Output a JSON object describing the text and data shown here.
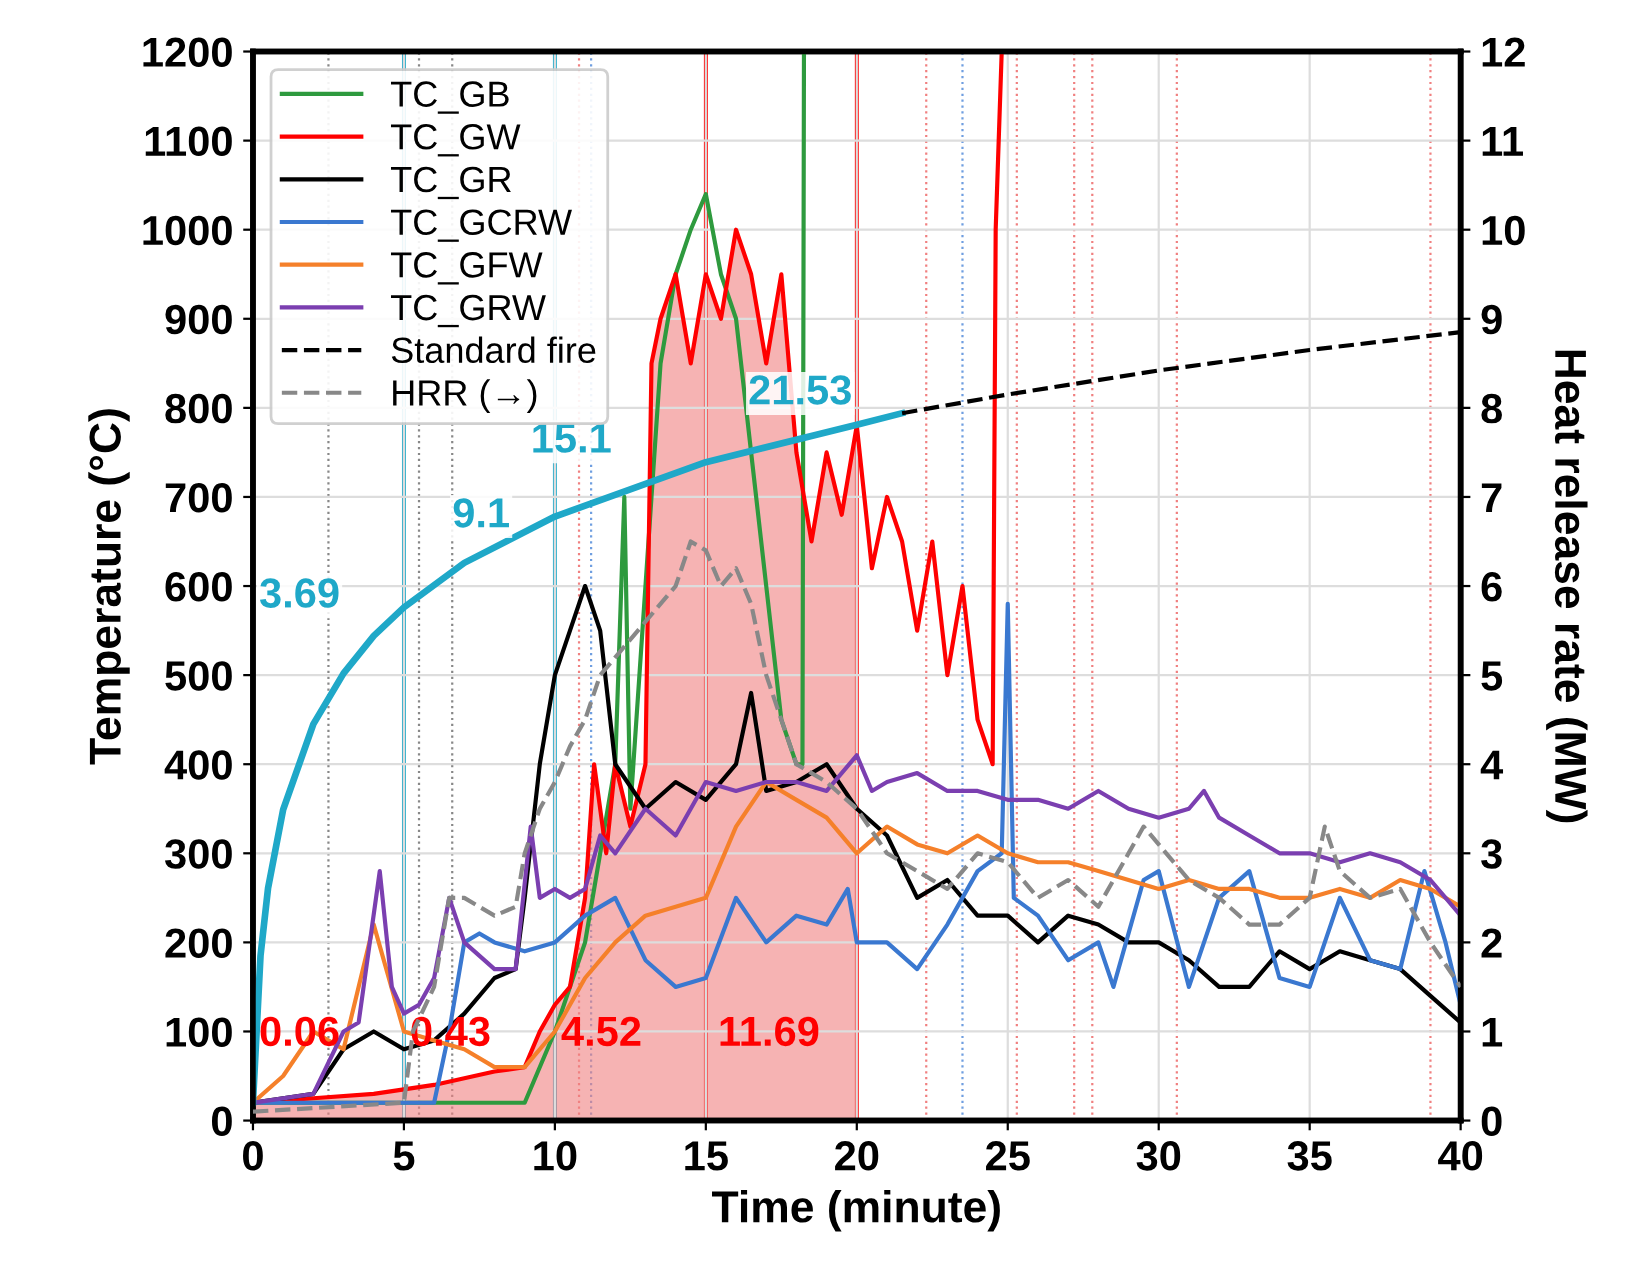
{
  "chart_data": {
    "type": "line",
    "xlabel": "Time (minute)",
    "ylabel": "Temperature (°C)",
    "y2label": "Heat release rate (MW)",
    "xlim": [
      0,
      40
    ],
    "xticks": [
      0,
      5,
      10,
      15,
      20,
      25,
      30,
      35,
      40
    ],
    "ylim": [
      0,
      1200
    ],
    "yticks": [
      0,
      100,
      200,
      300,
      400,
      500,
      600,
      700,
      800,
      900,
      1000,
      1100,
      1200
    ],
    "y2lim": [
      0,
      12
    ],
    "y2ticks": [
      0,
      1,
      2,
      3,
      4,
      5,
      6,
      7,
      8,
      9,
      10,
      11,
      12
    ],
    "grid": true,
    "legend": "top left",
    "series": [
      {
        "type": "area",
        "color": "#f08080",
        "x": [
          0,
          2,
          4,
          6,
          8,
          9,
          9.5,
          10,
          10.5,
          11,
          11.3,
          11.7,
          12,
          12.5,
          13,
          13.2,
          13.5,
          14,
          14.5,
          15,
          15.5,
          16,
          16.5,
          17,
          17.5,
          18,
          18.5,
          19,
          19.5,
          20
        ],
        "values": [
          20,
          25,
          30,
          40,
          55,
          60,
          100,
          130,
          150,
          250,
          400,
          300,
          400,
          330,
          400,
          850,
          900,
          950,
          850,
          950,
          900,
          1000,
          950,
          850,
          950,
          750,
          650,
          750,
          680,
          780
        ]
      },
      {
        "name": "TC_GB",
        "color": "#2e9a3e",
        "x": [
          0,
          5,
          9,
          10,
          11,
          11.5,
          12,
          12.3,
          12.5,
          13,
          13.5,
          14,
          14.5,
          15,
          15.5,
          16,
          16.5,
          17,
          17.5,
          18,
          18.2,
          18.25
        ],
        "values": [
          20,
          20,
          20,
          100,
          200,
          300,
          400,
          700,
          350,
          600,
          850,
          950,
          1000,
          1040,
          950,
          900,
          750,
          600,
          450,
          400,
          400,
          1200
        ]
      },
      {
        "name": "TC_GW",
        "color": "#ff0000",
        "x": [
          0,
          2,
          4,
          6,
          8,
          9,
          9.5,
          10,
          10.5,
          11,
          11.3,
          11.7,
          12,
          12.5,
          13,
          13.2,
          13.5,
          14,
          14.5,
          15,
          15.5,
          16,
          16.5,
          17,
          17.5,
          18,
          18.5,
          19,
          19.5,
          20,
          20.5,
          21,
          21.5,
          22,
          22.5,
          23,
          23.5,
          24,
          24.5,
          24.6,
          24.8
        ],
        "values": [
          20,
          25,
          30,
          40,
          55,
          60,
          100,
          130,
          150,
          250,
          400,
          300,
          400,
          330,
          400,
          850,
          900,
          950,
          850,
          950,
          900,
          1000,
          950,
          850,
          950,
          750,
          650,
          750,
          680,
          780,
          620,
          700,
          650,
          550,
          650,
          500,
          600,
          450,
          400,
          1000,
          1200
        ]
      },
      {
        "name": "TC_GR",
        "color": "#000000",
        "x": [
          0,
          2,
          3,
          4,
          5,
          6,
          7,
          8,
          8.7,
          9,
          9.5,
          10,
          10.5,
          11,
          11.5,
          12,
          13,
          14,
          15,
          16,
          16.5,
          17,
          18,
          19,
          20,
          21,
          22,
          23,
          24,
          25,
          26,
          27,
          28,
          29,
          30,
          31,
          32,
          33,
          34,
          35,
          36,
          37,
          38,
          39,
          40
        ],
        "values": [
          20,
          30,
          80,
          100,
          80,
          90,
          120,
          160,
          170,
          250,
          400,
          500,
          550,
          600,
          550,
          400,
          350,
          380,
          360,
          400,
          480,
          370,
          380,
          400,
          350,
          320,
          250,
          270,
          230,
          230,
          200,
          230,
          220,
          200,
          200,
          180,
          150,
          150,
          190,
          170,
          190,
          180,
          170,
          140,
          110
        ]
      },
      {
        "name": "TC_GCRW",
        "color": "#3a78d0",
        "x": [
          0,
          6,
          6.5,
          7,
          7.5,
          8,
          9,
          10,
          11,
          12,
          13,
          14,
          15,
          16,
          17,
          18,
          19,
          19.7,
          20,
          21,
          22,
          23,
          24,
          24.8,
          25,
          25.2,
          26,
          27,
          28,
          28.5,
          29.5,
          30,
          31,
          32,
          33,
          34,
          35,
          36,
          37,
          38,
          38.8,
          39.5,
          40
        ],
        "values": [
          20,
          20,
          100,
          200,
          210,
          200,
          190,
          200,
          230,
          250,
          180,
          150,
          160,
          250,
          200,
          230,
          220,
          260,
          200,
          200,
          170,
          220,
          280,
          300,
          580,
          250,
          230,
          180,
          200,
          150,
          270,
          280,
          150,
          250,
          280,
          160,
          150,
          250,
          180,
          170,
          280,
          200,
          130
        ]
      },
      {
        "name": "TC_GFW",
        "color": "#f5802a",
        "x": [
          0,
          1,
          2,
          3,
          4,
          5,
          6,
          7,
          8,
          9,
          10,
          11,
          12,
          13,
          14,
          15,
          16,
          17,
          18,
          19,
          20,
          21,
          22,
          23,
          24,
          25,
          26,
          27,
          28,
          29,
          30,
          31,
          32,
          33,
          34,
          35,
          36,
          37,
          38,
          39,
          40
        ],
        "values": [
          20,
          50,
          100,
          80,
          220,
          100,
          90,
          80,
          60,
          60,
          100,
          160,
          200,
          230,
          240,
          250,
          330,
          380,
          360,
          340,
          300,
          330,
          310,
          300,
          320,
          300,
          290,
          290,
          280,
          270,
          260,
          270,
          260,
          260,
          250,
          250,
          260,
          250,
          270,
          260,
          240
        ]
      },
      {
        "name": "TC_GRW",
        "color": "#7b3fb0",
        "x": [
          0,
          2,
          3,
          3.5,
          4.2,
          4.6,
          5,
          5.5,
          6,
          6.5,
          7,
          8,
          8.7,
          9.2,
          9.5,
          10,
          10.5,
          11,
          11.5,
          12,
          13,
          14,
          15,
          16,
          17,
          18,
          19,
          20,
          20.5,
          21,
          22,
          23,
          24,
          25,
          26,
          27,
          28,
          29,
          30,
          31,
          31.5,
          32,
          33,
          34,
          35,
          36,
          37,
          38,
          39,
          40
        ],
        "values": [
          20,
          30,
          100,
          110,
          280,
          150,
          120,
          130,
          160,
          250,
          200,
          170,
          170,
          330,
          250,
          260,
          250,
          260,
          320,
          300,
          350,
          320,
          380,
          370,
          380,
          380,
          370,
          410,
          370,
          380,
          390,
          370,
          370,
          360,
          360,
          350,
          370,
          350,
          340,
          350,
          370,
          340,
          320,
          300,
          300,
          290,
          300,
          290,
          270,
          230
        ]
      },
      {
        "color": "#1fa8c8",
        "x": [
          0,
          0.25,
          0.5,
          1,
          2,
          3,
          4,
          5,
          7,
          10,
          15,
          20,
          21.5
        ],
        "values": [
          20,
          185,
          261,
          349,
          445,
          502,
          544,
          576,
          626,
          678,
          739,
          781,
          794
        ]
      },
      {
        "name": "Standard fire",
        "color": "#000000",
        "line_style": "dashed",
        "x": [
          21.5,
          25,
          30,
          35,
          40
        ],
        "values": [
          794,
          815,
          842,
          865,
          885
        ]
      },
      {
        "name": "HRR (→)",
        "color": "#888888",
        "line_style": "dashed",
        "axis": "y2",
        "x": [
          0,
          5,
          5.3,
          6,
          6.5,
          7,
          8,
          8.7,
          9,
          9.5,
          10,
          10.5,
          11,
          11.5,
          12,
          13,
          14,
          14.5,
          15,
          15.5,
          16,
          16.5,
          17,
          17.5,
          18,
          19,
          20,
          21,
          22,
          23,
          24,
          25,
          26,
          27,
          28,
          29,
          29.5,
          30,
          31,
          32,
          33,
          34,
          35,
          35.5,
          36,
          37,
          38,
          39,
          40
        ],
        "values": [
          0.1,
          0.2,
          1.0,
          1.5,
          2.5,
          2.5,
          2.3,
          2.4,
          3.0,
          3.5,
          3.8,
          4.2,
          4.5,
          5.0,
          5.2,
          5.6,
          6.0,
          6.5,
          6.4,
          6.0,
          6.2,
          5.8,
          5.0,
          4.5,
          4.0,
          3.8,
          3.5,
          3.0,
          2.8,
          2.6,
          3.0,
          2.9,
          2.5,
          2.7,
          2.4,
          3.0,
          3.3,
          3.1,
          2.7,
          2.5,
          2.2,
          2.2,
          2.5,
          3.3,
          2.8,
          2.5,
          2.6,
          2.0,
          1.5
        ]
      }
    ],
    "ref_lines": [
      {
        "axis": "x",
        "value": 5,
        "color": "#1fa8c8"
      },
      {
        "axis": "x",
        "value": 10,
        "color": "#1fa8c8"
      },
      {
        "axis": "x",
        "value": 15,
        "color": "#ff0000"
      },
      {
        "axis": "x",
        "value": 20,
        "color": "#ff0000"
      },
      {
        "axis": "x",
        "value": 2.5,
        "color": "#888888",
        "line_style": "dotted"
      },
      {
        "axis": "x",
        "value": 5.5,
        "color": "#888888",
        "line_style": "dotted"
      },
      {
        "axis": "x",
        "value": 6.6,
        "color": "#888888",
        "line_style": "dotted"
      },
      {
        "axis": "x",
        "value": 10.8,
        "color": "#f08080",
        "line_style": "dotted"
      },
      {
        "axis": "x",
        "value": 11.2,
        "color": "#6f9ee0",
        "line_style": "dotted"
      },
      {
        "axis": "x",
        "value": 22.3,
        "color": "#f08080",
        "line_style": "dotted"
      },
      {
        "axis": "x",
        "value": 23.5,
        "color": "#6f9ee0",
        "line_style": "dotted"
      },
      {
        "axis": "x",
        "value": 25.3,
        "color": "#f08080",
        "line_style": "dotted"
      },
      {
        "axis": "x",
        "value": 27.2,
        "color": "#f08080",
        "line_style": "dotted"
      },
      {
        "axis": "x",
        "value": 27.8,
        "color": "#f08080",
        "line_style": "dotted"
      },
      {
        "axis": "x",
        "value": 30.6,
        "color": "#f08080",
        "line_style": "dotted"
      },
      {
        "axis": "x",
        "value": 39,
        "color": "#f08080",
        "line_style": "dotted"
      }
    ],
    "annotations": [
      "3.69",
      "9.1",
      "15.1",
      "21.53",
      "0.06",
      "0.43",
      "4.52",
      "11.69"
    ]
  }
}
